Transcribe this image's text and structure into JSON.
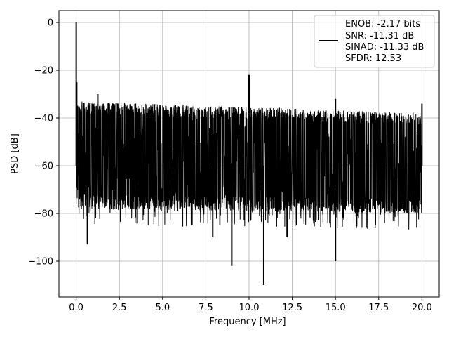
{
  "chart_data": {
    "type": "line",
    "title": "",
    "xlabel": "Frequency [MHz]",
    "ylabel": "PSD [dB]",
    "xlim": [
      -1.0,
      21.0
    ],
    "ylim": [
      -115,
      5
    ],
    "xticks": [
      0.0,
      2.5,
      5.0,
      7.5,
      10.0,
      12.5,
      15.0,
      17.5,
      20.0
    ],
    "xtick_labels": [
      "0.0",
      "2.5",
      "5.0",
      "7.5",
      "10.0",
      "12.5",
      "15.0",
      "17.5",
      "20.0"
    ],
    "yticks": [
      0,
      -20,
      -40,
      -60,
      -80,
      -100
    ],
    "ytick_labels": [
      "0",
      "−20",
      "−40",
      "−60",
      "−80",
      "−100"
    ],
    "grid": true,
    "legend_position": "top-right",
    "series_color": "#000000",
    "legend": {
      "lines": [
        "ENOB: -2.17 bits",
        "SNR: -11.31 dB",
        "SINAD: -11.33 dB",
        "SFDR: 12.53"
      ]
    },
    "noise_band": {
      "x_start": 0.0,
      "x_end": 20.0,
      "upper_start": -33,
      "upper_end": -38,
      "lower_start": -78,
      "lower_end": -80
    },
    "spikes": [
      {
        "x": 0.0,
        "y": 0
      },
      {
        "x": 0.03,
        "y": -25
      },
      {
        "x": 1.25,
        "y": -30
      },
      {
        "x": 10.0,
        "y": -22
      },
      {
        "x": 15.0,
        "y": -32
      },
      {
        "x": 20.0,
        "y": -34
      }
    ],
    "dips": [
      {
        "x": 0.65,
        "y": -93
      },
      {
        "x": 9.0,
        "y": -102
      },
      {
        "x": 10.85,
        "y": -110
      },
      {
        "x": 15.0,
        "y": -100
      },
      {
        "x": 7.9,
        "y": -90
      },
      {
        "x": 12.2,
        "y": -90
      }
    ]
  }
}
